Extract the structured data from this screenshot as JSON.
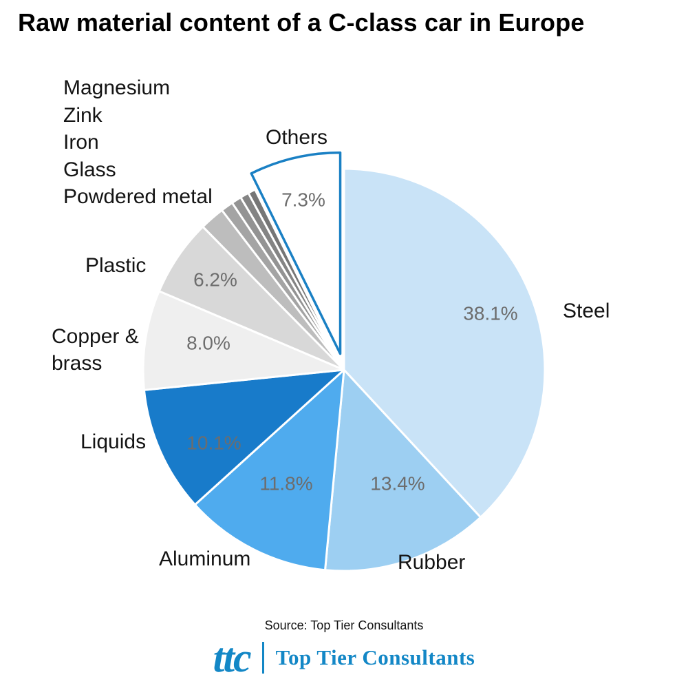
{
  "page": {
    "background": "#ffffff"
  },
  "title": "Raw material content of a C-class car in Europe",
  "footer": {
    "source": "Source: Top Tier Consultants"
  },
  "logo": {
    "mark": "ttc",
    "name": "Top Tier Consultants",
    "color": "#1387c6"
  },
  "chart_data": {
    "type": "pie",
    "title": "Raw material content of a C-class car in Europe",
    "direction": "clockwise",
    "start_angle_deg": 0,
    "total": 100,
    "percent_label_color": "#6d6d6d",
    "others_outline_color": "#1a80c4",
    "slices": [
      {
        "label": "Steel",
        "value": 38.1,
        "display": "38.1%",
        "color": "#c9e3f7"
      },
      {
        "label": "Rubber",
        "value": 13.4,
        "display": "13.4%",
        "color": "#9dcff2"
      },
      {
        "label": "Aluminum",
        "value": 11.8,
        "display": "11.8%",
        "color": "#4fabee"
      },
      {
        "label": "Liquids",
        "value": 10.1,
        "display": "10.1%",
        "color": "#187bca"
      },
      {
        "label": "Copper & brass",
        "value": 8.0,
        "display": "8.0%",
        "color": "#efefef"
      },
      {
        "label": "Plastic",
        "value": 6.2,
        "display": "6.2%",
        "color": "#d8d8d8"
      },
      {
        "label": "Powdered metal",
        "value": 2.0,
        "display": "",
        "estimated": true,
        "color": "#bdbdbd"
      },
      {
        "label": "Glass",
        "value": 1.0,
        "display": "",
        "estimated": true,
        "color": "#a4a4a4"
      },
      {
        "label": "Iron",
        "value": 0.8,
        "display": "",
        "estimated": true,
        "color": "#939393"
      },
      {
        "label": "Zink",
        "value": 0.7,
        "display": "",
        "estimated": true,
        "color": "#848484"
      },
      {
        "label": "Magnesium",
        "value": 0.6,
        "display": "",
        "estimated": true,
        "color": "#767676"
      },
      {
        "label": "Others",
        "value": 7.3,
        "display": "7.3%",
        "color": "#ffffff",
        "exploded": true,
        "stroke": "#1a80c4"
      }
    ]
  }
}
